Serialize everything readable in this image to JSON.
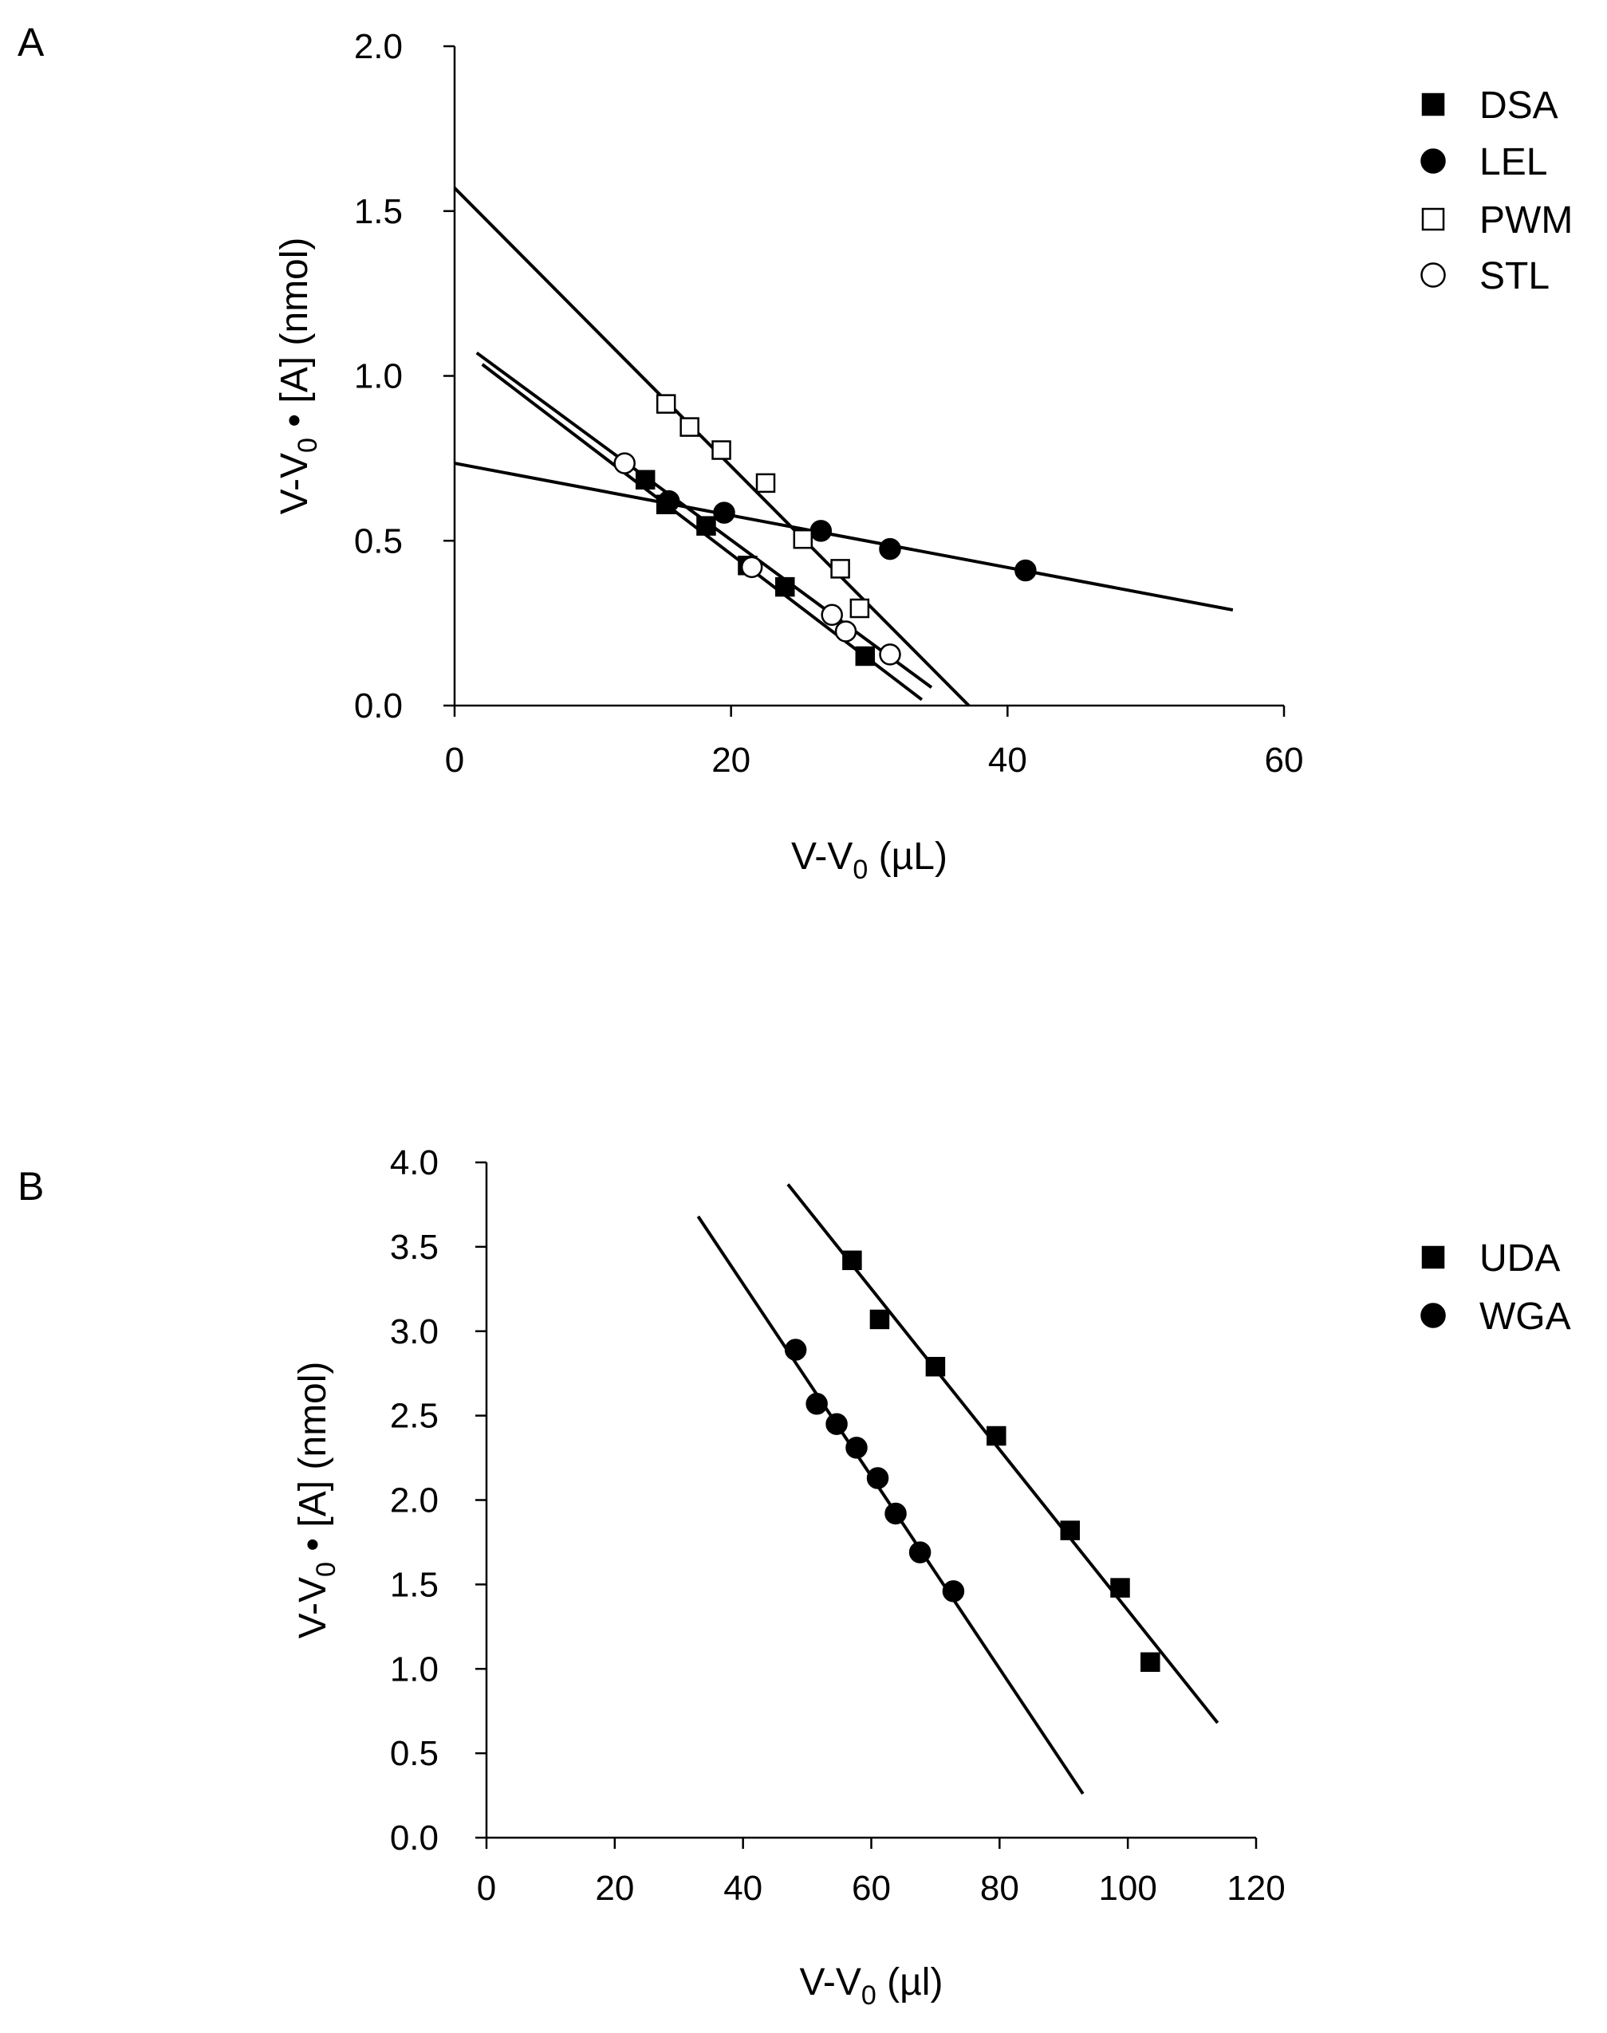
{
  "chart_data": [
    {
      "type": "scatter",
      "panel_label": "A",
      "xlabel": {
        "main": "V-V",
        "sub": "0",
        "suffix": " (µL)"
      },
      "ylabel": {
        "main": "V-V",
        "sub": "0",
        "suffix": " • [A] (nmol)"
      },
      "xlim": [
        0,
        60
      ],
      "ylim": [
        0,
        2
      ],
      "xticks": [
        {
          "value": 0,
          "label": "0"
        },
        {
          "value": 20,
          "label": "20"
        },
        {
          "value": 40,
          "label": "40"
        },
        {
          "value": 60,
          "label": "60"
        }
      ],
      "yticks": [
        {
          "value": 0,
          "label": "0.0"
        },
        {
          "value": 0.5,
          "label": "0.5"
        },
        {
          "value": 1.0,
          "label": "1.0"
        },
        {
          "value": 1.5,
          "label": "1.5"
        },
        {
          "value": 2.0,
          "label": "2.0"
        }
      ],
      "legend_position": "top-right",
      "series": [
        {
          "name": "DSA",
          "marker": "square",
          "filled": true,
          "x": [
            13.8,
            15.3,
            18.2,
            21.2,
            23.9,
            29.7
          ],
          "y": [
            0.685,
            0.61,
            0.545,
            0.425,
            0.36,
            0.15
          ],
          "fit": {
            "x": [
              2.0,
              33.8
            ],
            "y": [
              1.035,
              0.018
            ]
          }
        },
        {
          "name": "LEL",
          "marker": "circle",
          "filled": true,
          "x": [
            15.5,
            19.5,
            26.5,
            31.5,
            41.3
          ],
          "y": [
            0.62,
            0.585,
            0.53,
            0.475,
            0.41
          ],
          "fit": {
            "x": [
              0.0,
              56.3
            ],
            "y": [
              0.735,
              0.29
            ]
          }
        },
        {
          "name": "PWM",
          "marker": "square",
          "filled": false,
          "x": [
            15.3,
            17.0,
            19.3,
            22.5,
            25.2,
            27.9,
            29.3
          ],
          "y": [
            0.915,
            0.845,
            0.775,
            0.675,
            0.505,
            0.415,
            0.295
          ],
          "fit": {
            "x": [
              0.0,
              37.2
            ],
            "y": [
              1.57,
              0.0
            ]
          }
        },
        {
          "name": "STL",
          "marker": "circle",
          "filled": false,
          "x": [
            12.3,
            21.5,
            27.3,
            28.3,
            31.5
          ],
          "y": [
            0.735,
            0.42,
            0.275,
            0.225,
            0.155
          ],
          "fit": {
            "x": [
              1.6,
              34.5
            ],
            "y": [
              1.07,
              0.055
            ]
          }
        }
      ]
    },
    {
      "type": "scatter",
      "panel_label": "B",
      "xlabel": {
        "main": "V-V",
        "sub": "0",
        "suffix": " (µl)"
      },
      "ylabel": {
        "main": "V-V",
        "sub": "0",
        "suffix": " • [A] (nmol)"
      },
      "xlim": [
        0,
        120
      ],
      "ylim": [
        0,
        4
      ],
      "xticks": [
        {
          "value": 0,
          "label": "0"
        },
        {
          "value": 20,
          "label": "20"
        },
        {
          "value": 40,
          "label": "40"
        },
        {
          "value": 60,
          "label": "60"
        },
        {
          "value": 80,
          "label": "80"
        },
        {
          "value": 100,
          "label": "100"
        },
        {
          "value": 120,
          "label": "120"
        }
      ],
      "yticks": [
        {
          "value": 0,
          "label": "0.0"
        },
        {
          "value": 0.5,
          "label": "0.5"
        },
        {
          "value": 1.0,
          "label": "1.0"
        },
        {
          "value": 1.5,
          "label": "1.5"
        },
        {
          "value": 2.0,
          "label": "2.0"
        },
        {
          "value": 2.5,
          "label": "2.5"
        },
        {
          "value": 3.0,
          "label": "3.0"
        },
        {
          "value": 3.5,
          "label": "3.5"
        },
        {
          "value": 4.0,
          "label": "4.0"
        }
      ],
      "legend_position": "top-right",
      "series": [
        {
          "name": "UDA",
          "marker": "square",
          "filled": true,
          "x": [
            57.0,
            61.3,
            70.0,
            79.5,
            91.0,
            98.8,
            103.5
          ],
          "y": [
            3.42,
            3.07,
            2.79,
            2.38,
            1.82,
            1.48,
            1.04
          ],
          "fit": {
            "x": [
              47.0,
              114.0
            ],
            "y": [
              3.87,
              0.68
            ]
          }
        },
        {
          "name": "WGA",
          "marker": "circle",
          "filled": true,
          "x": [
            48.2,
            51.5,
            54.6,
            57.7,
            61.0,
            63.8,
            67.6,
            72.8
          ],
          "y": [
            2.89,
            2.57,
            2.45,
            2.31,
            2.13,
            1.92,
            1.69,
            1.46
          ],
          "fit": {
            "x": [
              33.0,
              93.0
            ],
            "y": [
              3.68,
              0.26
            ]
          }
        }
      ]
    }
  ]
}
